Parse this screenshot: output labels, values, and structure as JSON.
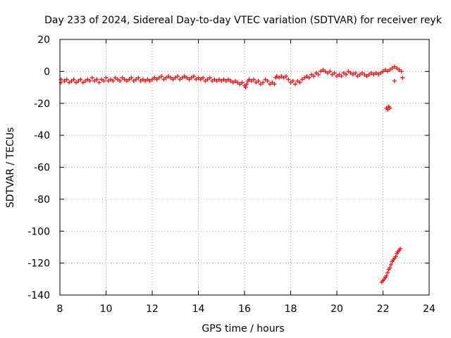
{
  "chart_data": {
    "type": "scatter",
    "title": "Day 233 of 2024, Sidereal Day-to-day VTEC variation (SDTVAR) for receiver reyk",
    "xlabel": "GPS time / hours",
    "ylabel": "SDTVAR / TECUs",
    "xlim": [
      8,
      24
    ],
    "ylim": [
      -140,
      20
    ],
    "xticks": [
      8,
      10,
      12,
      14,
      16,
      18,
      20,
      22,
      24
    ],
    "yticks": [
      20,
      0,
      -20,
      -40,
      -60,
      -80,
      -100,
      -120,
      -140
    ],
    "grid": true,
    "marker": "+",
    "series": [
      {
        "name": "SDTVAR",
        "color": "#ff0000",
        "points": [
          [
            8.05,
            -5
          ],
          [
            8.05,
            -7
          ],
          [
            8.2,
            -6
          ],
          [
            8.3,
            -5
          ],
          [
            8.4,
            -7
          ],
          [
            8.5,
            -6
          ],
          [
            8.6,
            -5
          ],
          [
            8.7,
            -7
          ],
          [
            8.8,
            -6
          ],
          [
            8.9,
            -5
          ],
          [
            9.0,
            -7
          ],
          [
            9.1,
            -6
          ],
          [
            9.2,
            -5
          ],
          [
            9.3,
            -6
          ],
          [
            9.4,
            -4
          ],
          [
            9.5,
            -6
          ],
          [
            9.6,
            -5
          ],
          [
            9.7,
            -7
          ],
          [
            9.8,
            -5
          ],
          [
            9.9,
            -6
          ],
          [
            10.0,
            -4
          ],
          [
            10.1,
            -6
          ],
          [
            10.2,
            -5
          ],
          [
            10.3,
            -6
          ],
          [
            10.4,
            -4
          ],
          [
            10.5,
            -5
          ],
          [
            10.6,
            -6
          ],
          [
            10.7,
            -4
          ],
          [
            10.8,
            -5
          ],
          [
            10.9,
            -6
          ],
          [
            11.0,
            -5
          ],
          [
            11.1,
            -4
          ],
          [
            11.2,
            -6
          ],
          [
            11.3,
            -5
          ],
          [
            11.4,
            -4
          ],
          [
            11.5,
            -6
          ],
          [
            11.6,
            -5
          ],
          [
            11.7,
            -6
          ],
          [
            11.8,
            -5
          ],
          [
            11.9,
            -6
          ],
          [
            12.0,
            -5
          ],
          [
            12.1,
            -4
          ],
          [
            12.2,
            -5
          ],
          [
            12.3,
            -4
          ],
          [
            12.4,
            -3
          ],
          [
            12.5,
            -5
          ],
          [
            12.6,
            -4
          ],
          [
            12.7,
            -3
          ],
          [
            12.8,
            -4
          ],
          [
            12.9,
            -5
          ],
          [
            13.0,
            -4
          ],
          [
            13.1,
            -3
          ],
          [
            13.2,
            -5
          ],
          [
            13.3,
            -4
          ],
          [
            13.4,
            -3
          ],
          [
            13.5,
            -4
          ],
          [
            13.6,
            -5
          ],
          [
            13.7,
            -4
          ],
          [
            13.8,
            -3
          ],
          [
            13.9,
            -5
          ],
          [
            14.0,
            -4
          ],
          [
            14.1,
            -5
          ],
          [
            14.2,
            -4
          ],
          [
            14.3,
            -6
          ],
          [
            14.4,
            -5
          ],
          [
            14.5,
            -4
          ],
          [
            14.6,
            -6
          ],
          [
            14.7,
            -5
          ],
          [
            14.8,
            -6
          ],
          [
            14.9,
            -5
          ],
          [
            15.0,
            -6
          ],
          [
            15.1,
            -5
          ],
          [
            15.2,
            -6
          ],
          [
            15.3,
            -5
          ],
          [
            15.4,
            -6
          ],
          [
            15.5,
            -7
          ],
          [
            15.6,
            -6
          ],
          [
            15.7,
            -7
          ],
          [
            15.8,
            -8
          ],
          [
            15.9,
            -7
          ],
          [
            16.0,
            -9
          ],
          [
            16.05,
            -10
          ],
          [
            16.1,
            -8
          ],
          [
            16.15,
            -6
          ],
          [
            16.2,
            -5
          ],
          [
            16.3,
            -6
          ],
          [
            16.4,
            -5
          ],
          [
            16.5,
            -7
          ],
          [
            16.6,
            -6
          ],
          [
            16.7,
            -8
          ],
          [
            16.8,
            -7
          ],
          [
            16.9,
            -5
          ],
          [
            17.0,
            -6
          ],
          [
            17.1,
            -8
          ],
          [
            17.2,
            -7
          ],
          [
            17.3,
            -8
          ],
          [
            17.35,
            -4
          ],
          [
            17.4,
            -3
          ],
          [
            17.5,
            -4
          ],
          [
            17.6,
            -3
          ],
          [
            17.7,
            -4
          ],
          [
            17.8,
            -3
          ],
          [
            17.9,
            -5
          ],
          [
            18.0,
            -7
          ],
          [
            18.1,
            -6
          ],
          [
            18.2,
            -8
          ],
          [
            18.3,
            -6
          ],
          [
            18.4,
            -7
          ],
          [
            18.5,
            -5
          ],
          [
            18.6,
            -4
          ],
          [
            18.7,
            -3
          ],
          [
            18.8,
            -4
          ],
          [
            18.9,
            -2
          ],
          [
            19.0,
            -3
          ],
          [
            19.1,
            -1
          ],
          [
            19.2,
            -2
          ],
          [
            19.3,
            0
          ],
          [
            19.4,
            1
          ],
          [
            19.5,
            0
          ],
          [
            19.6,
            -1
          ],
          [
            19.7,
            0
          ],
          [
            19.8,
            -2
          ],
          [
            19.9,
            -1
          ],
          [
            20.0,
            -3
          ],
          [
            20.1,
            -2
          ],
          [
            20.2,
            -3
          ],
          [
            20.3,
            -1
          ],
          [
            20.4,
            -2
          ],
          [
            20.5,
            0
          ],
          [
            20.6,
            -1
          ],
          [
            20.7,
            -2
          ],
          [
            20.8,
            -1
          ],
          [
            20.9,
            -3
          ],
          [
            21.0,
            -2
          ],
          [
            21.1,
            -1
          ],
          [
            21.2,
            -2
          ],
          [
            21.3,
            -3
          ],
          [
            21.4,
            -2
          ],
          [
            21.5,
            -1
          ],
          [
            21.6,
            -2
          ],
          [
            21.7,
            -1
          ],
          [
            21.8,
            -2
          ],
          [
            21.9,
            -1
          ],
          [
            22.0,
            0
          ],
          [
            22.1,
            1
          ],
          [
            22.2,
            0
          ],
          [
            22.3,
            1
          ],
          [
            22.4,
            2
          ],
          [
            22.5,
            3
          ],
          [
            22.6,
            2
          ],
          [
            22.7,
            1
          ],
          [
            22.8,
            0
          ],
          [
            22.85,
            -4
          ],
          [
            22.5,
            -6
          ],
          [
            22.15,
            -23
          ],
          [
            22.2,
            -24
          ],
          [
            22.25,
            -22
          ],
          [
            22.3,
            -23
          ],
          [
            21.95,
            -132
          ],
          [
            22.0,
            -131
          ],
          [
            22.05,
            -130
          ],
          [
            22.1,
            -129
          ],
          [
            22.15,
            -128
          ],
          [
            22.2,
            -126
          ],
          [
            22.25,
            -124
          ],
          [
            22.3,
            -123
          ],
          [
            22.35,
            -121
          ],
          [
            22.4,
            -119
          ],
          [
            22.45,
            -118
          ],
          [
            22.5,
            -117
          ],
          [
            22.55,
            -116
          ],
          [
            22.6,
            -114
          ],
          [
            22.65,
            -113
          ],
          [
            22.7,
            -112
          ],
          [
            22.75,
            -111
          ]
        ]
      }
    ]
  }
}
